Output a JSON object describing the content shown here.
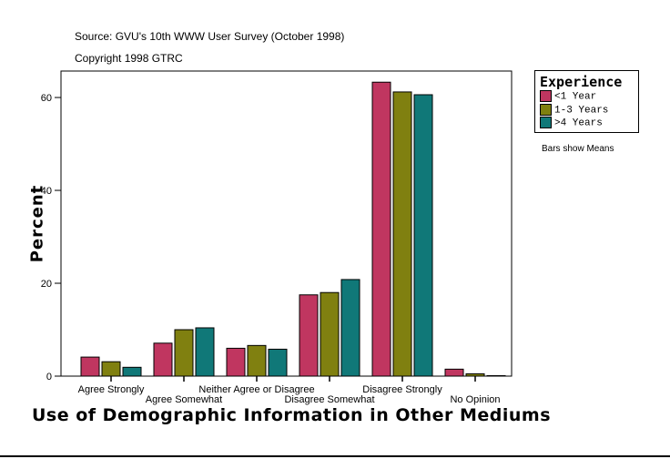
{
  "source": "Source: GVU's 10th WWW User Survey (October 1998)",
  "copyright": "Copyright 1998 GTRC",
  "note": "Bars show Means",
  "chart_data": {
    "type": "bar",
    "title": "",
    "xlabel": "Use of Demographic Information in Other Mediums",
    "ylabel": "Percent",
    "ylim": [
      0,
      65.7
    ],
    "yticks": [
      0,
      20,
      40,
      60
    ],
    "grid": false,
    "legend_title": "Experience",
    "legend_position": "right",
    "categories": [
      "Agree Strongly",
      "Agree Somewhat",
      "Neither Agree or Disagree",
      "Disagree Somewhat",
      "Disagree Strongly",
      "No Opinion"
    ],
    "series": [
      {
        "name": "<1 Year",
        "color": "#c03660",
        "values": [
          4.1,
          7.1,
          6.0,
          17.5,
          63.3,
          1.5
        ]
      },
      {
        "name": "1-3 Years",
        "color": "#808010",
        "values": [
          3.1,
          10.0,
          6.6,
          18.0,
          61.2,
          0.5
        ]
      },
      {
        "name": ">4 Years",
        "color": "#107878",
        "values": [
          1.9,
          10.4,
          5.8,
          20.8,
          60.6,
          0.1
        ]
      }
    ]
  }
}
